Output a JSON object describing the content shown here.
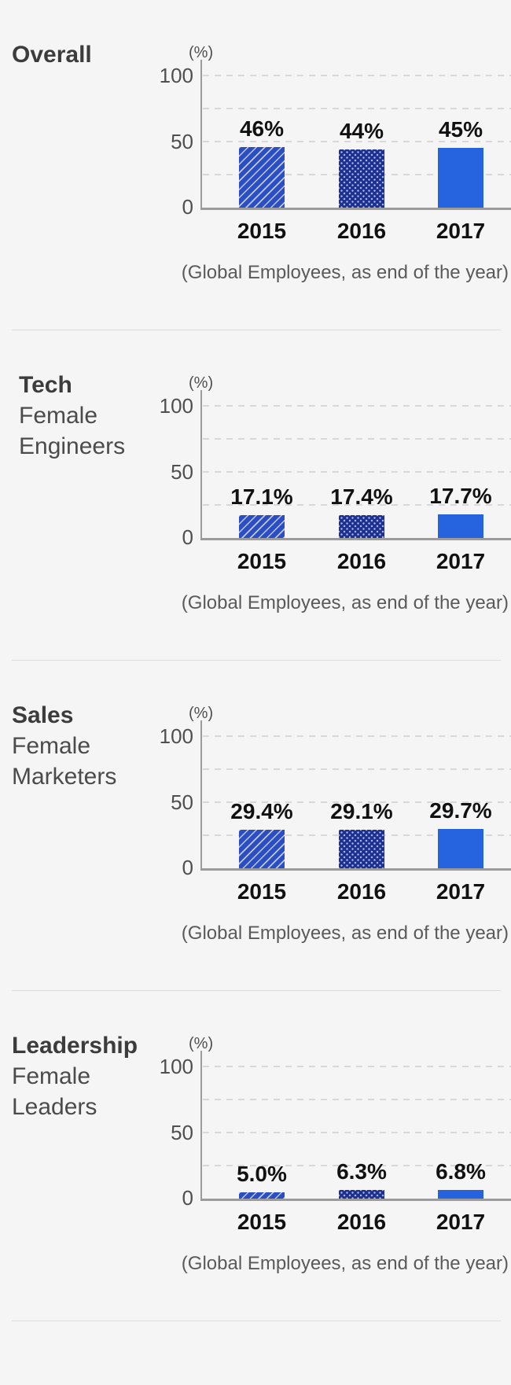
{
  "page": {
    "unit_label": "(%)",
    "y_ticks": [
      "100",
      "50",
      "0"
    ],
    "years": [
      "2015",
      "2016",
      "2017"
    ],
    "caption": "(Global Employees, as end of the year)",
    "background_color": "#f5f5f5",
    "divider_color": "#dcdcdc",
    "bar_colors": {
      "2015": "#2b4ec2",
      "2016": "#1d2f8f",
      "2017": "#2563df"
    },
    "bar_patterns": {
      "2015": "diagonal-hatch",
      "2016": "dots",
      "2017": "solid"
    }
  },
  "chart_data": [
    {
      "type": "bar",
      "title_lines": [
        "Overall"
      ],
      "categories": [
        "2015",
        "2016",
        "2017"
      ],
      "values": [
        46,
        44,
        45
      ],
      "value_labels": [
        "46%",
        "44%",
        "45%"
      ],
      "ylabel": "(%)",
      "ylim": [
        0,
        100
      ],
      "yticks": [
        0,
        50,
        100
      ],
      "grid": "horizontal dashed at 25, 50, 75, 100",
      "legend_position": "none",
      "caption": "(Global Employees, as end of the year)"
    },
    {
      "type": "bar",
      "title_lines": [
        "Tech",
        "Female",
        "Engineers"
      ],
      "categories": [
        "2015",
        "2016",
        "2017"
      ],
      "values": [
        17.1,
        17.4,
        17.7
      ],
      "value_labels": [
        "17.1%",
        "17.4%",
        "17.7%"
      ],
      "ylabel": "(%)",
      "ylim": [
        0,
        100
      ],
      "yticks": [
        0,
        50,
        100
      ],
      "grid": "horizontal dashed at 25, 50, 75, 100",
      "legend_position": "none",
      "caption": "(Global Employees, as end of the year)"
    },
    {
      "type": "bar",
      "title_lines": [
        "Sales",
        "Female",
        "Marketers"
      ],
      "categories": [
        "2015",
        "2016",
        "2017"
      ],
      "values": [
        29.4,
        29.1,
        29.7
      ],
      "value_labels": [
        "29.4%",
        "29.1%",
        "29.7%"
      ],
      "ylabel": "(%)",
      "ylim": [
        0,
        100
      ],
      "yticks": [
        0,
        50,
        100
      ],
      "grid": "horizontal dashed at 25, 50, 75, 100",
      "legend_position": "none",
      "caption": "(Global Employees, as end of the year)"
    },
    {
      "type": "bar",
      "title_lines": [
        "Leadership",
        "Female",
        "Leaders"
      ],
      "categories": [
        "2015",
        "2016",
        "2017"
      ],
      "values": [
        5.0,
        6.3,
        6.8
      ],
      "value_labels": [
        "5.0%",
        "6.3%",
        "6.8%"
      ],
      "ylabel": "(%)",
      "ylim": [
        0,
        100
      ],
      "yticks": [
        0,
        50,
        100
      ],
      "grid": "horizontal dashed at 25, 50, 75, 100",
      "legend_position": "none",
      "caption": "(Global Employees, as end of the year)"
    }
  ]
}
